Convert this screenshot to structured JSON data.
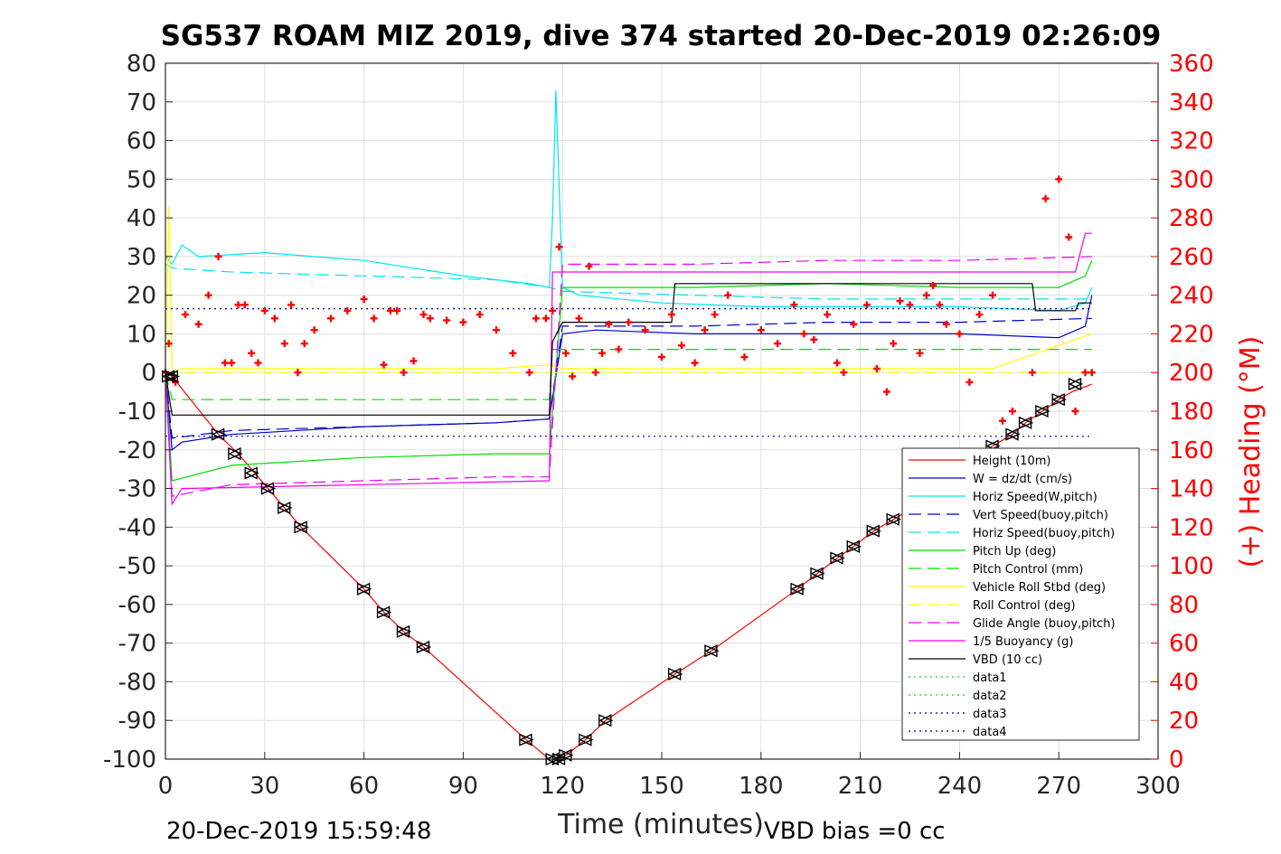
{
  "chart_data": {
    "type": "line",
    "title": "SG537 ROAM MIZ 2019, dive 374 started 20-Dec-2019 02:26:09",
    "xlabel": "Time (minutes)",
    "ylabel_right": "(+) Heading (°M)",
    "xlim": [
      0,
      300
    ],
    "ylim": [
      -100,
      80
    ],
    "ylim_right": [
      0,
      360
    ],
    "x_ticks": [
      "0",
      "30",
      "60",
      "90",
      "120",
      "150",
      "180",
      "210",
      "240",
      "270",
      "300"
    ],
    "y_ticks": [
      "80",
      "70",
      "60",
      "50",
      "40",
      "30",
      "20",
      "10",
      "0",
      "-10",
      "-20",
      "-30",
      "-40",
      "-50",
      "-60",
      "-70",
      "-80",
      "-90",
      "-100"
    ],
    "y_right_ticks": [
      "360",
      "340",
      "320",
      "300",
      "280",
      "260",
      "240",
      "220",
      "200",
      "180",
      "160",
      "140",
      "120",
      "100",
      "80",
      "60",
      "40",
      "20",
      "0"
    ],
    "grid": true,
    "legend_position": "lower-right",
    "footer_left": "20-Dec-2019 15:59:48",
    "footer_right": "VBD bias =0 cc",
    "series": [
      {
        "name": "Height (10m)",
        "color": "#ff0000",
        "style": "solid",
        "x": [
          0,
          2,
          16,
          22,
          26,
          31,
          36,
          41,
          60,
          66,
          72,
          78,
          109,
          116,
          117,
          119,
          121,
          127,
          133,
          154,
          165,
          191,
          197,
          203,
          208,
          214,
          220,
          226,
          250,
          256,
          260,
          265,
          270,
          274,
          280
        ],
        "y": [
          0,
          -1,
          -16,
          -21,
          -25,
          -30,
          -35,
          -40,
          -56,
          -62,
          -67,
          -71,
          -95,
          -100,
          -100,
          -100,
          -99,
          -95,
          -90,
          -78,
          -72,
          -56,
          -52,
          -48,
          -45,
          -41,
          -38,
          -35,
          -19,
          -16,
          -13,
          -10,
          -7,
          -5,
          -3
        ]
      },
      {
        "name": "W = dz/dt (cm/s)",
        "color": "#0000cc",
        "style": "solid",
        "x": [
          0,
          2,
          5,
          20,
          60,
          100,
          116,
          120,
          130,
          160,
          200,
          240,
          270,
          278,
          280
        ],
        "y": [
          0,
          -20,
          -18,
          -16,
          -14,
          -13,
          -12,
          10,
          11,
          10,
          10,
          10,
          9,
          12,
          20
        ]
      },
      {
        "name": "Horiz Speed(W,pitch)",
        "color": "#00e5ee",
        "style": "solid",
        "x": [
          0,
          2,
          5,
          10,
          30,
          60,
          90,
          110,
          116,
          117,
          118,
          120,
          125,
          150,
          180,
          210,
          240,
          270,
          278,
          280
        ],
        "y": [
          30,
          28,
          33,
          30,
          31,
          29,
          25,
          23,
          22,
          40,
          73,
          22,
          20,
          18,
          17,
          17,
          17,
          16,
          18,
          22
        ]
      },
      {
        "name": "Vert Speed(buoy,pitch)",
        "color": "#0000cc",
        "style": "dashed",
        "x": [
          0,
          2,
          20,
          60,
          100,
          116,
          120,
          160,
          200,
          240,
          280
        ],
        "y": [
          0,
          -17,
          -15,
          -14,
          -13,
          -12,
          12,
          12,
          13,
          13,
          14
        ]
      },
      {
        "name": "Horiz Speed(buoy,pitch)",
        "color": "#00e5ee",
        "style": "dashed",
        "x": [
          0,
          2,
          20,
          60,
          100,
          116,
          120,
          160,
          200,
          240,
          280
        ],
        "y": [
          28,
          27,
          26,
          25,
          24,
          22,
          21,
          20,
          19,
          19,
          19
        ]
      },
      {
        "name": "Pitch Up (deg)",
        "color": "#00dd00",
        "style": "solid",
        "x": [
          0,
          2,
          20,
          60,
          100,
          116,
          120,
          160,
          200,
          240,
          270,
          278,
          280
        ],
        "y": [
          0,
          -28,
          -24,
          -22,
          -21,
          -21,
          22,
          22,
          23,
          22,
          22,
          25,
          29
        ]
      },
      {
        "name": "Pitch Control (mm)",
        "color": "#00dd00",
        "style": "dashed",
        "x": [
          0,
          2,
          116,
          117,
          280
        ],
        "y": [
          0,
          -7,
          -7,
          6,
          6
        ]
      },
      {
        "name": "Vehicle Roll Stbd (deg)",
        "color": "#ffff00",
        "style": "solid",
        "x": [
          0,
          1,
          2,
          5,
          20,
          60,
          100,
          116,
          120,
          150,
          200,
          250,
          280
        ],
        "y": [
          0,
          43,
          0,
          1,
          1,
          1,
          1,
          2,
          1,
          1,
          1,
          1,
          10
        ]
      },
      {
        "name": "Roll Control (deg)",
        "color": "#ffff00",
        "style": "dashed",
        "x": [
          0,
          280
        ],
        "y": [
          0,
          0
        ]
      },
      {
        "name": "Glide Angle (buoy,pitch)",
        "color": "#ee00ee",
        "style": "dashed",
        "x": [
          0,
          2,
          20,
          60,
          100,
          116,
          120,
          160,
          200,
          240,
          280
        ],
        "y": [
          0,
          -32,
          -29,
          -28,
          -27,
          -27,
          28,
          28,
          29,
          29,
          30
        ]
      },
      {
        "name": "1/5 Buoyancy (g)",
        "color": "#ee00ee",
        "style": "solid",
        "x": [
          0,
          2,
          5,
          116,
          117,
          275,
          278,
          280
        ],
        "y": [
          0,
          -34,
          -30,
          -28,
          26,
          26,
          36,
          36
        ]
      },
      {
        "name": "VBD (10 cc)",
        "color": "#000000",
        "style": "solid",
        "x": [
          0,
          2,
          116,
          117,
          120,
          153,
          154,
          262,
          263,
          275,
          276,
          280
        ],
        "y": [
          0,
          -11,
          -11,
          8,
          13,
          13,
          23,
          23,
          16,
          16,
          18,
          18
        ]
      },
      {
        "name": "data1",
        "color": "#00dd00",
        "style": "dotted",
        "x": [],
        "y": []
      },
      {
        "name": "data2",
        "color": "#00dd00",
        "style": "dotted",
        "x": [],
        "y": []
      },
      {
        "name": "data3",
        "color": "#000099",
        "style": "dotted",
        "x": [
          0,
          280
        ],
        "y": [
          16.5,
          16.5
        ]
      },
      {
        "name": "data4",
        "color": "#000099",
        "style": "dotted",
        "x": [
          0,
          280
        ],
        "y": [
          -16.5,
          -16.5
        ]
      }
    ],
    "heading_series": {
      "name": "(+) Heading (°M)",
      "color": "#ff0000",
      "marker": "+",
      "x": [
        0,
        1,
        3,
        6,
        10,
        13,
        16,
        18,
        20,
        22,
        24,
        26,
        28,
        30,
        33,
        36,
        38,
        40,
        42,
        45,
        50,
        55,
        60,
        63,
        66,
        68,
        70,
        72,
        75,
        78,
        80,
        85,
        90,
        95,
        100,
        105,
        110,
        112,
        115,
        117,
        119,
        121,
        123,
        125,
        128,
        130,
        132,
        134,
        137,
        140,
        145,
        150,
        153,
        156,
        160,
        163,
        166,
        170,
        175,
        180,
        185,
        190,
        193,
        196,
        200,
        203,
        205,
        208,
        212,
        215,
        218,
        220,
        222,
        225,
        228,
        230,
        232,
        234,
        236,
        240,
        243,
        246,
        250,
        253,
        256,
        258,
        262,
        266,
        270,
        273,
        275,
        278,
        280
      ],
      "y": [
        200,
        215,
        195,
        230,
        225,
        240,
        260,
        205,
        205,
        235,
        235,
        210,
        205,
        232,
        228,
        215,
        235,
        200,
        215,
        222,
        228,
        232,
        238,
        228,
        204,
        232,
        232,
        200,
        206,
        230,
        228,
        227,
        226,
        230,
        222,
        210,
        200,
        228,
        228,
        232,
        265,
        210,
        198,
        228,
        255,
        200,
        210,
        225,
        212,
        226,
        222,
        208,
        230,
        214,
        205,
        222,
        230,
        240,
        208,
        222,
        215,
        235,
        220,
        217,
        230,
        205,
        200,
        225,
        235,
        202,
        190,
        215,
        237,
        235,
        210,
        240,
        245,
        235,
        225,
        220,
        195,
        230,
        240,
        175,
        180,
        150,
        200,
        290,
        300,
        270,
        180,
        200,
        200
      ]
    },
    "markers": {
      "name": "depth markers",
      "color": "#000000",
      "x": [
        1,
        2,
        16,
        21,
        26,
        31,
        36,
        41,
        60,
        66,
        72,
        78,
        109,
        117,
        119,
        121,
        127,
        133,
        154,
        165,
        191,
        197,
        203,
        208,
        214,
        220,
        250,
        256,
        260,
        265,
        270,
        275
      ],
      "y": [
        -1,
        -1,
        -16,
        -21,
        -26,
        -30,
        -35,
        -40,
        -56,
        -62,
        -67,
        -71,
        -95,
        -100,
        -100,
        -99,
        -95,
        -90,
        -78,
        -72,
        -56,
        -52,
        -48,
        -45,
        -41,
        -38,
        -19,
        -16,
        -13,
        -10,
        -7,
        -3
      ]
    }
  }
}
